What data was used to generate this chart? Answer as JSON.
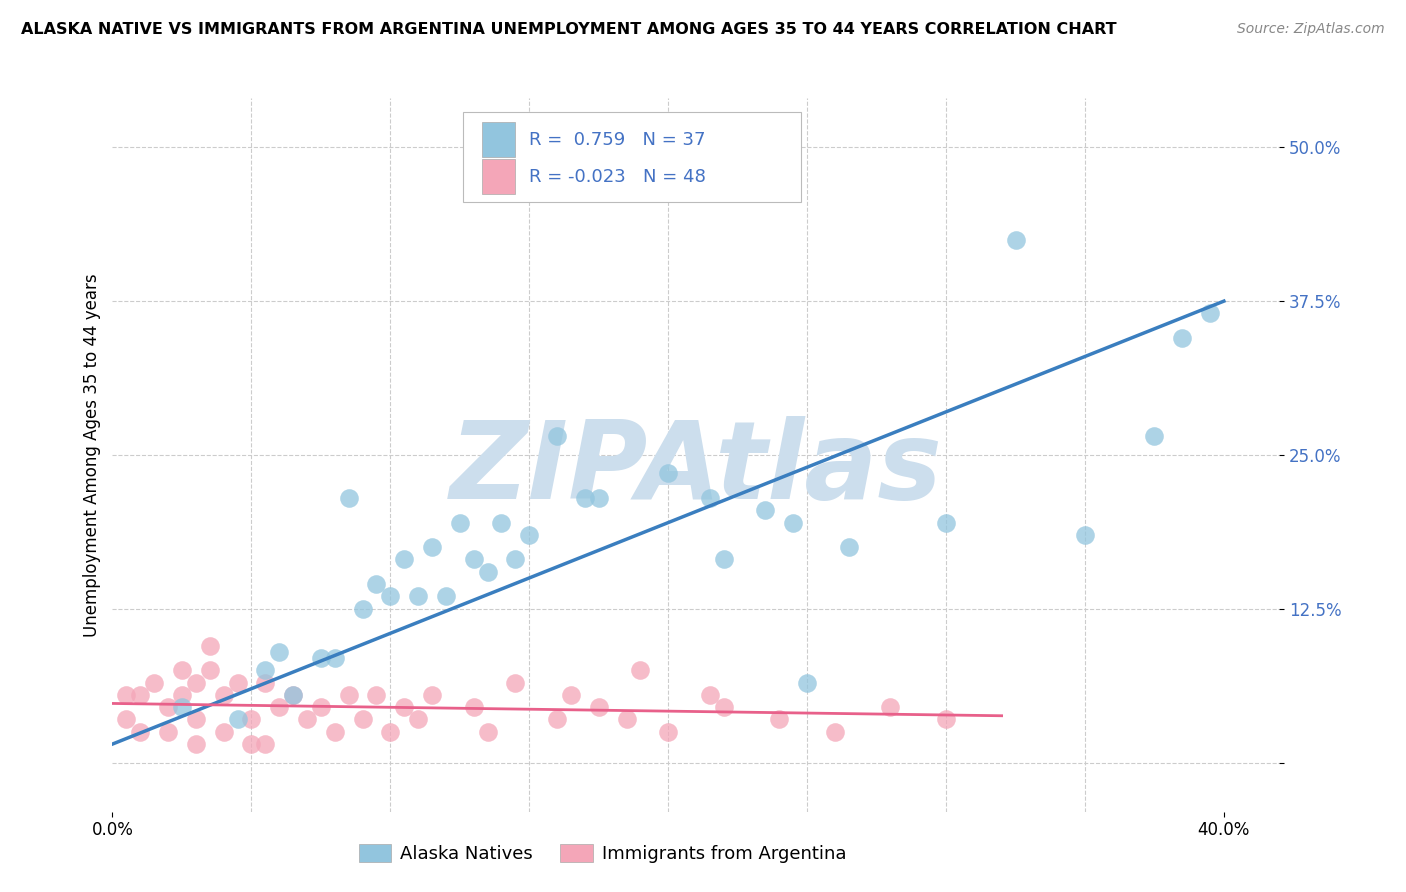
{
  "title": "ALASKA NATIVE VS IMMIGRANTS FROM ARGENTINA UNEMPLOYMENT AMONG AGES 35 TO 44 YEARS CORRELATION CHART",
  "source": "Source: ZipAtlas.com",
  "ylabel": "Unemployment Among Ages 35 to 44 years",
  "xlim": [
    0.0,
    0.42
  ],
  "ylim": [
    -0.04,
    0.54
  ],
  "yticks_right": [
    0.0,
    0.125,
    0.25,
    0.375,
    0.5
  ],
  "ytick_labels_right": [
    "",
    "12.5%",
    "25.0%",
    "37.5%",
    "50.0%"
  ],
  "xtick_positions": [
    0.0,
    0.4
  ],
  "xtick_labels": [
    "0.0%",
    "40.0%"
  ],
  "legend_R1": "0.759",
  "legend_N1": "37",
  "legend_R2": "-0.023",
  "legend_N2": "48",
  "blue_color": "#92c5de",
  "pink_color": "#f4a6b8",
  "blue_line_color": "#3a7ebf",
  "pink_line_color": "#e8608a",
  "watermark": "ZIPAtlas",
  "watermark_color": "#ccdeed",
  "blue_scatter_x": [
    0.025,
    0.045,
    0.055,
    0.06,
    0.065,
    0.075,
    0.08,
    0.085,
    0.09,
    0.095,
    0.1,
    0.105,
    0.11,
    0.115,
    0.12,
    0.125,
    0.13,
    0.135,
    0.14,
    0.145,
    0.15,
    0.16,
    0.17,
    0.175,
    0.2,
    0.215,
    0.22,
    0.235,
    0.245,
    0.25,
    0.265,
    0.3,
    0.325,
    0.35,
    0.375,
    0.385,
    0.395
  ],
  "blue_scatter_y": [
    0.045,
    0.035,
    0.075,
    0.09,
    0.055,
    0.085,
    0.085,
    0.215,
    0.125,
    0.145,
    0.135,
    0.165,
    0.135,
    0.175,
    0.135,
    0.195,
    0.165,
    0.155,
    0.195,
    0.165,
    0.185,
    0.265,
    0.215,
    0.215,
    0.235,
    0.215,
    0.165,
    0.205,
    0.195,
    0.065,
    0.175,
    0.195,
    0.425,
    0.185,
    0.265,
    0.345,
    0.365
  ],
  "pink_scatter_x": [
    0.005,
    0.005,
    0.01,
    0.01,
    0.015,
    0.02,
    0.02,
    0.025,
    0.025,
    0.03,
    0.03,
    0.03,
    0.035,
    0.035,
    0.04,
    0.04,
    0.045,
    0.05,
    0.05,
    0.055,
    0.055,
    0.06,
    0.065,
    0.07,
    0.075,
    0.08,
    0.085,
    0.09,
    0.095,
    0.1,
    0.105,
    0.11,
    0.115,
    0.13,
    0.135,
    0.145,
    0.16,
    0.165,
    0.175,
    0.185,
    0.19,
    0.2,
    0.215,
    0.22,
    0.24,
    0.26,
    0.28,
    0.3
  ],
  "pink_scatter_y": [
    0.035,
    0.055,
    0.025,
    0.055,
    0.065,
    0.025,
    0.045,
    0.055,
    0.075,
    0.015,
    0.035,
    0.065,
    0.075,
    0.095,
    0.025,
    0.055,
    0.065,
    0.015,
    0.035,
    0.015,
    0.065,
    0.045,
    0.055,
    0.035,
    0.045,
    0.025,
    0.055,
    0.035,
    0.055,
    0.025,
    0.045,
    0.035,
    0.055,
    0.045,
    0.025,
    0.065,
    0.035,
    0.055,
    0.045,
    0.035,
    0.075,
    0.025,
    0.055,
    0.045,
    0.035,
    0.025,
    0.045,
    0.035
  ],
  "blue_line_x": [
    0.0,
    0.4
  ],
  "blue_line_y": [
    0.015,
    0.375
  ],
  "pink_line_x": [
    0.0,
    0.32
  ],
  "pink_line_y": [
    0.048,
    0.038
  ],
  "background_color": "#ffffff",
  "grid_color": "#cccccc",
  "legend_text_color": "#4472c4",
  "title_fontsize": 11.5,
  "axis_fontsize": 12,
  "legend_fontsize": 13
}
